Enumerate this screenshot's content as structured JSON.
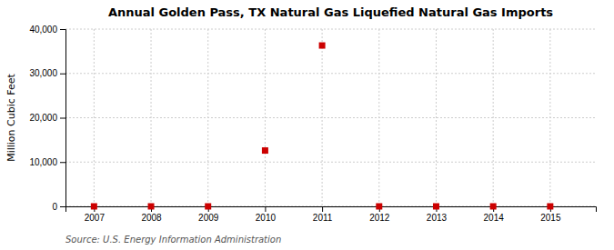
{
  "chart_data": {
    "type": "scatter",
    "title": "Annual Golden Pass, TX Natural Gas Liquefied Natural Gas Imports",
    "y_label": "Million Cubic Feet",
    "source": "Source: U.S. Energy Information Administration",
    "x": [
      2007,
      2008,
      2009,
      2010,
      2011,
      2012,
      2013,
      2014,
      2015
    ],
    "values": [
      0,
      0,
      0,
      12600,
      36300,
      0,
      0,
      0,
      0
    ],
    "color": "#cc0000",
    "marker": "square",
    "xlim": [
      2006.5,
      2015.8
    ],
    "ylim": [
      0,
      40000
    ],
    "xticks": [
      2007,
      2008,
      2009,
      2010,
      2011,
      2012,
      2013,
      2014,
      2015
    ],
    "yticks": [
      0,
      {
        "value": 10000,
        "label": "10,000"
      },
      {
        "value": 20000,
        "label": "20,000"
      },
      {
        "value": 30000,
        "label": "30,000"
      },
      {
        "value": 40000,
        "label": "40,000"
      }
    ],
    "grid": true
  }
}
